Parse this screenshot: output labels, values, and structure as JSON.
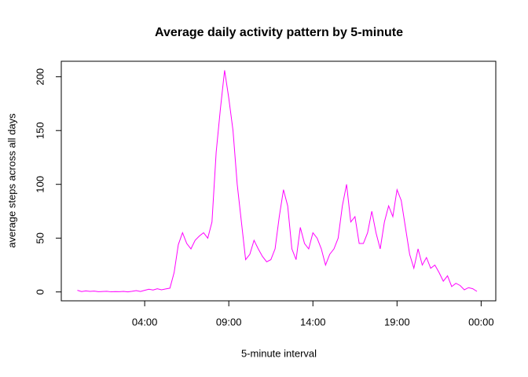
{
  "chart_data": {
    "type": "line",
    "title": "Average daily activity pattern by 5-minute",
    "x_label": "5-minute interval",
    "y_label": "average steps across all days",
    "x": [
      0,
      0.25,
      0.5,
      0.75,
      1,
      1.25,
      1.5,
      1.75,
      2,
      2.25,
      2.5,
      2.75,
      3,
      3.25,
      3.5,
      3.75,
      4,
      4.25,
      4.5,
      4.75,
      5,
      5.25,
      5.5,
      5.75,
      6,
      6.25,
      6.5,
      6.75,
      7,
      7.25,
      7.5,
      7.75,
      8,
      8.25,
      8.5,
      8.75,
      9,
      9.25,
      9.5,
      9.75,
      10,
      10.25,
      10.5,
      10.75,
      11,
      11.25,
      11.5,
      11.75,
      12,
      12.25,
      12.5,
      12.75,
      13,
      13.25,
      13.5,
      13.75,
      14,
      14.25,
      14.5,
      14.75,
      15,
      15.25,
      15.5,
      15.75,
      16,
      16.25,
      16.5,
      16.75,
      17,
      17.25,
      17.5,
      17.75,
      18,
      18.25,
      18.5,
      18.75,
      19,
      19.25,
      19.5,
      19.75,
      20,
      20.25,
      20.5,
      20.75,
      21,
      21.25,
      21.5,
      21.75,
      22,
      22.25,
      22.5,
      22.75,
      23,
      23.25,
      23.5,
      23.75
    ],
    "series": [
      {
        "name": "steps",
        "color": "#ff00ff",
        "values": [
          1.5,
          0.3,
          1,
          0.5,
          0.8,
          0.2,
          0.4,
          0.6,
          0.1,
          0.3,
          0.2,
          0.5,
          0.1,
          0.6,
          1.2,
          0.4,
          1.5,
          2.5,
          1.8,
          3,
          2,
          2.8,
          3.5,
          18,
          44,
          55,
          45,
          40,
          48,
          52,
          55,
          50,
          65,
          130,
          170,
          206,
          180,
          150,
          100,
          65,
          30,
          35,
          48,
          40,
          33,
          28,
          30,
          40,
          70,
          95,
          80,
          40,
          30,
          60,
          45,
          40,
          55,
          50,
          40,
          25,
          35,
          40,
          50,
          80,
          100,
          65,
          70,
          45,
          45,
          55,
          75,
          55,
          40,
          65,
          80,
          70,
          95,
          85,
          60,
          35,
          22,
          40,
          25,
          32,
          22,
          25,
          18,
          10,
          15,
          5,
          8,
          6,
          2,
          4,
          3,
          0.5
        ]
      }
    ],
    "xlim": [
      -0.957,
      24.87
    ],
    "ylim": [
      -8.25,
      214.4
    ],
    "xticks": [
      {
        "value": 4,
        "label": "04:00"
      },
      {
        "value": 9,
        "label": "09:00"
      },
      {
        "value": 14,
        "label": "14:00"
      },
      {
        "value": 19,
        "label": "19:00"
      },
      {
        "value": 24,
        "label": "00:00"
      }
    ],
    "yticks": [
      0,
      50,
      100,
      150,
      200
    ]
  }
}
